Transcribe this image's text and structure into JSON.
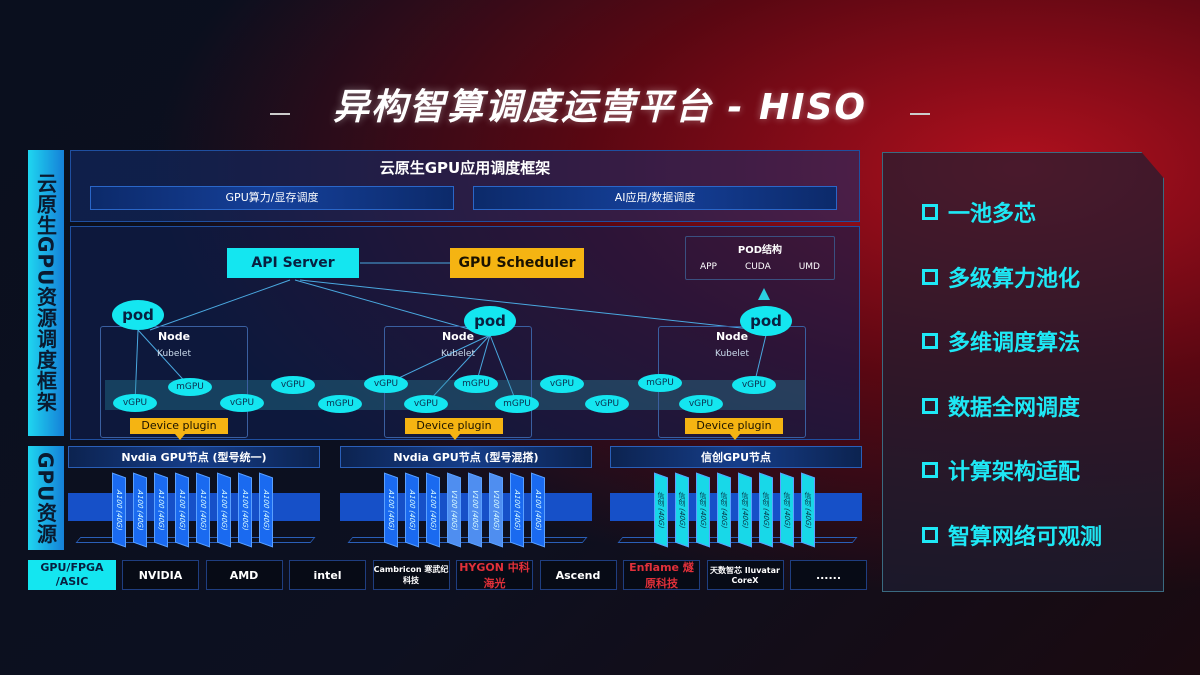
{
  "title": "异构智算调度运营平台 - HISO",
  "sidebar": {
    "top": "云原生GPU资源调度框架",
    "bottom": "GPU资源",
    "hw": "GPU/FPGA /ASIC"
  },
  "framework": {
    "title": "云原生GPU应用调度框架",
    "bars": [
      "GPU算力/显存调度",
      "AI应用/数据调度"
    ]
  },
  "arch": {
    "api_server": "API Server",
    "scheduler": "GPU Scheduler",
    "pod_struct": {
      "title": "POD结构",
      "items": [
        "APP",
        "CUDA",
        "UMD"
      ]
    },
    "pod": "pod",
    "node": "Node",
    "kubelet": "Kubelet",
    "device_plugin": "Device plugin",
    "gpus": [
      "vGPU",
      "mGPU",
      "vGPU",
      "vGPU",
      "mGPU",
      "vGPU",
      "vGPU",
      "mGPU",
      "mGPU",
      "vGPU",
      "vGPU",
      "mGPU",
      "vGPU",
      "vGPU"
    ]
  },
  "gpu_groups": [
    {
      "title": "Nvdia GPU节点 (型号统一)",
      "chips": [
        "A100 (40G)",
        "A100 (40G)",
        "A100 (40G)",
        "A100 (40G)",
        "A100 (40G)",
        "A100 (40G)",
        "A100 (40G)",
        "A100 (40G)"
      ]
    },
    {
      "title": "Nvdia GPU节点 (型号混搭)",
      "chips": [
        "A100 (40G)",
        "A100 (40G)",
        "A100 (40G)",
        "V100 (40G)",
        "V100 (40G)",
        "V100 (40G)",
        "A100 (40G)",
        "A100 (40G)"
      ]
    },
    {
      "title": "信创GPU节点",
      "chips": [
        "信创 (40G)",
        "信创 (40G)",
        "信创 (40G)",
        "信创 (40G)",
        "信创 (40G)",
        "信创 (40G)",
        "信创 (40G)",
        "信创 (40G)"
      ]
    }
  ],
  "vendors": [
    "NVIDIA",
    "AMD",
    "intel",
    "Cambricon 寒武纪科技",
    "HYGON 中科海光",
    "Ascend",
    "Enflame 燧原科技",
    "天数智芯 Iluvatar CoreX",
    "......"
  ],
  "features": [
    "一池多芯",
    "多级算力池化",
    "多维调度算法",
    "数据全网调度",
    "计算架构适配",
    "智算网络可观测"
  ],
  "colors": {
    "cyan": "#14e6f0",
    "yellow": "#f5b412",
    "blue": "#1650c8",
    "red": "#b0101e"
  }
}
